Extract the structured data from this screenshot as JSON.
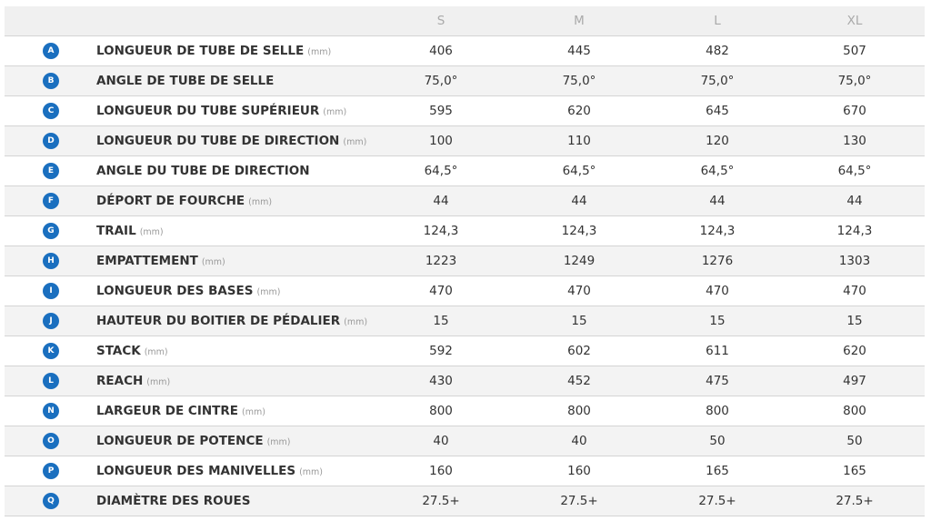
{
  "table": {
    "columns": [
      "S",
      "M",
      "L",
      "XL"
    ],
    "rows": [
      {
        "letter": "A",
        "label": "LONGUEUR DE TUBE DE SELLE",
        "unit": "(mm)",
        "values": [
          "406",
          "445",
          "482",
          "507"
        ]
      },
      {
        "letter": "B",
        "label": "ANGLE DE TUBE DE SELLE",
        "values": [
          "75,0°",
          "75,0°",
          "75,0°",
          "75,0°"
        ]
      },
      {
        "letter": "C",
        "label": "LONGUEUR DU TUBE SUPÉRIEUR",
        "unit": "(mm)",
        "values": [
          "595",
          "620",
          "645",
          "670"
        ]
      },
      {
        "letter": "D",
        "label": "LONGUEUR DU TUBE DE DIRECTION",
        "unit": "(mm)",
        "values": [
          "100",
          "110",
          "120",
          "130"
        ]
      },
      {
        "letter": "E",
        "label": "ANGLE DU TUBE DE DIRECTION",
        "values": [
          "64,5°",
          "64,5°",
          "64,5°",
          "64,5°"
        ]
      },
      {
        "letter": "F",
        "label": "DÉPORT DE FOURCHE",
        "unit": "(mm)",
        "values": [
          "44",
          "44",
          "44",
          "44"
        ]
      },
      {
        "letter": "G",
        "label": "TRAIL",
        "unit": "(mm)",
        "values": [
          "124,3",
          "124,3",
          "124,3",
          "124,3"
        ]
      },
      {
        "letter": "H",
        "label": "EMPATTEMENT",
        "unit": "(mm)",
        "values": [
          "1223",
          "1249",
          "1276",
          "1303"
        ]
      },
      {
        "letter": "I",
        "label": "LONGUEUR DES BASES",
        "unit": "(mm)",
        "values": [
          "470",
          "470",
          "470",
          "470"
        ]
      },
      {
        "letter": "J",
        "label": "HAUTEUR DU BOITIER DE PÉDALIER",
        "unit": "(mm)",
        "values": [
          "15",
          "15",
          "15",
          "15"
        ]
      },
      {
        "letter": "K",
        "label": "STACK",
        "unit": "(mm)",
        "values": [
          "592",
          "602",
          "611",
          "620"
        ]
      },
      {
        "letter": "L",
        "label": "REACH",
        "unit": "(mm)",
        "values": [
          "430",
          "452",
          "475",
          "497"
        ]
      },
      {
        "letter": "N",
        "label": "LARGEUR DE CINTRE",
        "unit": "(mm)",
        "values": [
          "800",
          "800",
          "800",
          "800"
        ]
      },
      {
        "letter": "O",
        "label": "LONGUEUR DE POTENCE",
        "unit": "(mm)",
        "values": [
          "40",
          "40",
          "50",
          "50"
        ]
      },
      {
        "letter": "P",
        "label": "LONGUEUR DES MANIVELLES",
        "unit": "(mm)",
        "values": [
          "160",
          "160",
          "165",
          "165"
        ]
      },
      {
        "letter": "Q",
        "label": "DIAMÈTRE DES ROUES",
        "values": [
          "27.5+",
          "27.5+",
          "27.5+",
          "27.5+"
        ]
      }
    ]
  }
}
